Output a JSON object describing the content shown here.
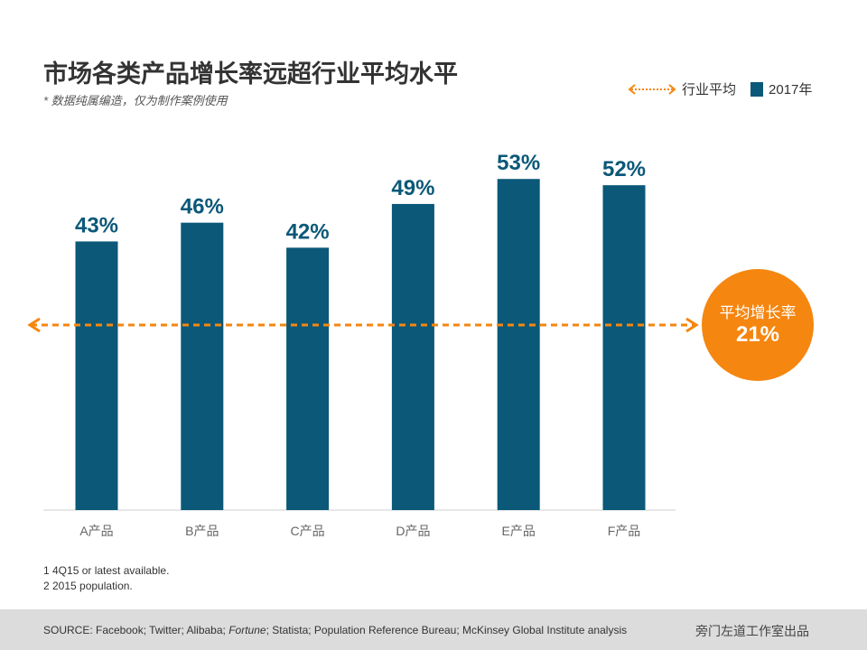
{
  "chart_data": {
    "type": "bar",
    "title": "市场各类产品增长率远超行业平均水平",
    "subtitle": "* 数据纯属编造，仅为制作案例使用",
    "categories": [
      "A产品",
      "B产品",
      "C产品",
      "D产品",
      "E产品",
      "F产品"
    ],
    "values": [
      43,
      46,
      42,
      49,
      53,
      52
    ],
    "value_labels": [
      "43%",
      "46%",
      "42%",
      "49%",
      "53%",
      "52%"
    ],
    "series_name": "2017年",
    "reference_line": {
      "name": "行业平均",
      "value": 21
    },
    "ylim": [
      0,
      60
    ],
    "legend": [
      "行业平均",
      "2017年"
    ],
    "legend_position": "top-right",
    "callout": {
      "label": "平均增长率",
      "value": "21%"
    }
  },
  "colors": {
    "bar": "#0b5878",
    "average": "#f5860f"
  },
  "notes": [
    "1 4Q15 or latest available.",
    "2 2015 population."
  ],
  "footer": {
    "source_prefix": "SOURCE: Facebook; Twitter; Alibaba; ",
    "source_italic": "Fortune",
    "source_suffix": "; Statista; Population Reference Bureau; McKinsey Global Institute analysis",
    "brand": "旁门左道工作室出品"
  }
}
